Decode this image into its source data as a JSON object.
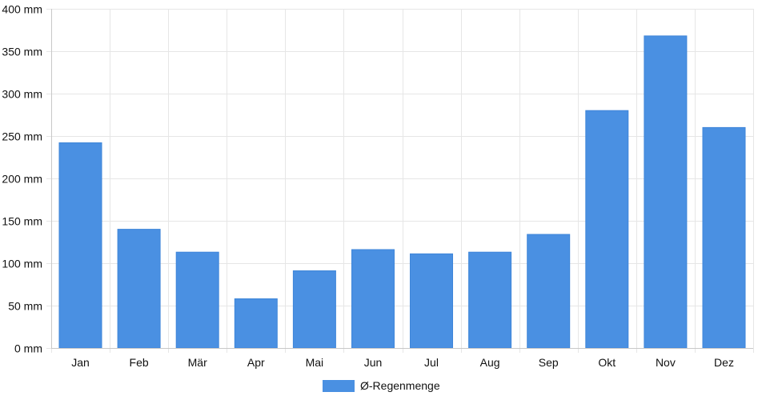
{
  "chart_data": {
    "type": "bar",
    "categories": [
      "Jan",
      "Feb",
      "Mär",
      "Apr",
      "Mai",
      "Jun",
      "Jul",
      "Aug",
      "Sep",
      "Okt",
      "Nov",
      "Dez"
    ],
    "series": [
      {
        "name": "Ø-Regenmenge",
        "values": [
          242,
          140,
          113,
          58,
          91,
          116,
          111,
          113,
          134,
          280,
          368,
          260
        ],
        "color": "#4a90e2"
      }
    ],
    "y_ticks": [
      "0 mm",
      "50 mm",
      "100 mm",
      "150 mm",
      "200 mm",
      "250 mm",
      "300 mm",
      "350 mm",
      "400 mm"
    ],
    "ylim": [
      0,
      400
    ],
    "y_unit": "mm",
    "grid": true,
    "legend_position": "bottom",
    "grid_color": "#e6e6e6",
    "axis_color": "#c8c8c8"
  }
}
